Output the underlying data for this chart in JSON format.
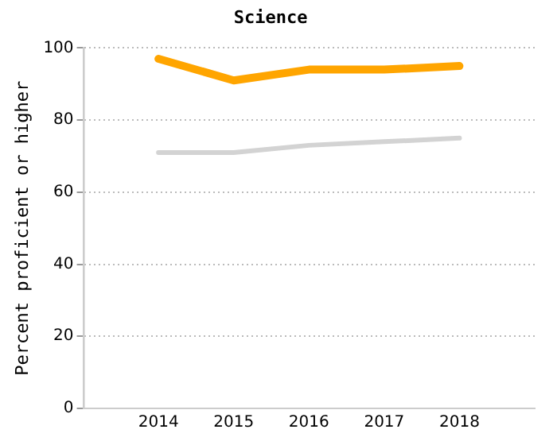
{
  "chart_data": {
    "type": "line",
    "title": "Science",
    "ylabel": "Percent proficient or higher",
    "x": [
      2014,
      2015,
      2016,
      2017,
      2018
    ],
    "series": [
      {
        "color": "#ffa500",
        "values": [
          97,
          91,
          94,
          94,
          95
        ]
      },
      {
        "color": "#d3d3d3",
        "values": [
          71,
          71,
          73,
          74,
          75
        ]
      }
    ],
    "xlim": [
      2013,
      2019
    ],
    "xticks": [
      2014,
      2015,
      2016,
      2017,
      2018
    ],
    "ylim": [
      0,
      100
    ],
    "yticks": [
      0,
      20,
      40,
      60,
      80,
      100
    ],
    "grid": "y",
    "legend": false,
    "marker": "none",
    "line_style": "solid"
  }
}
